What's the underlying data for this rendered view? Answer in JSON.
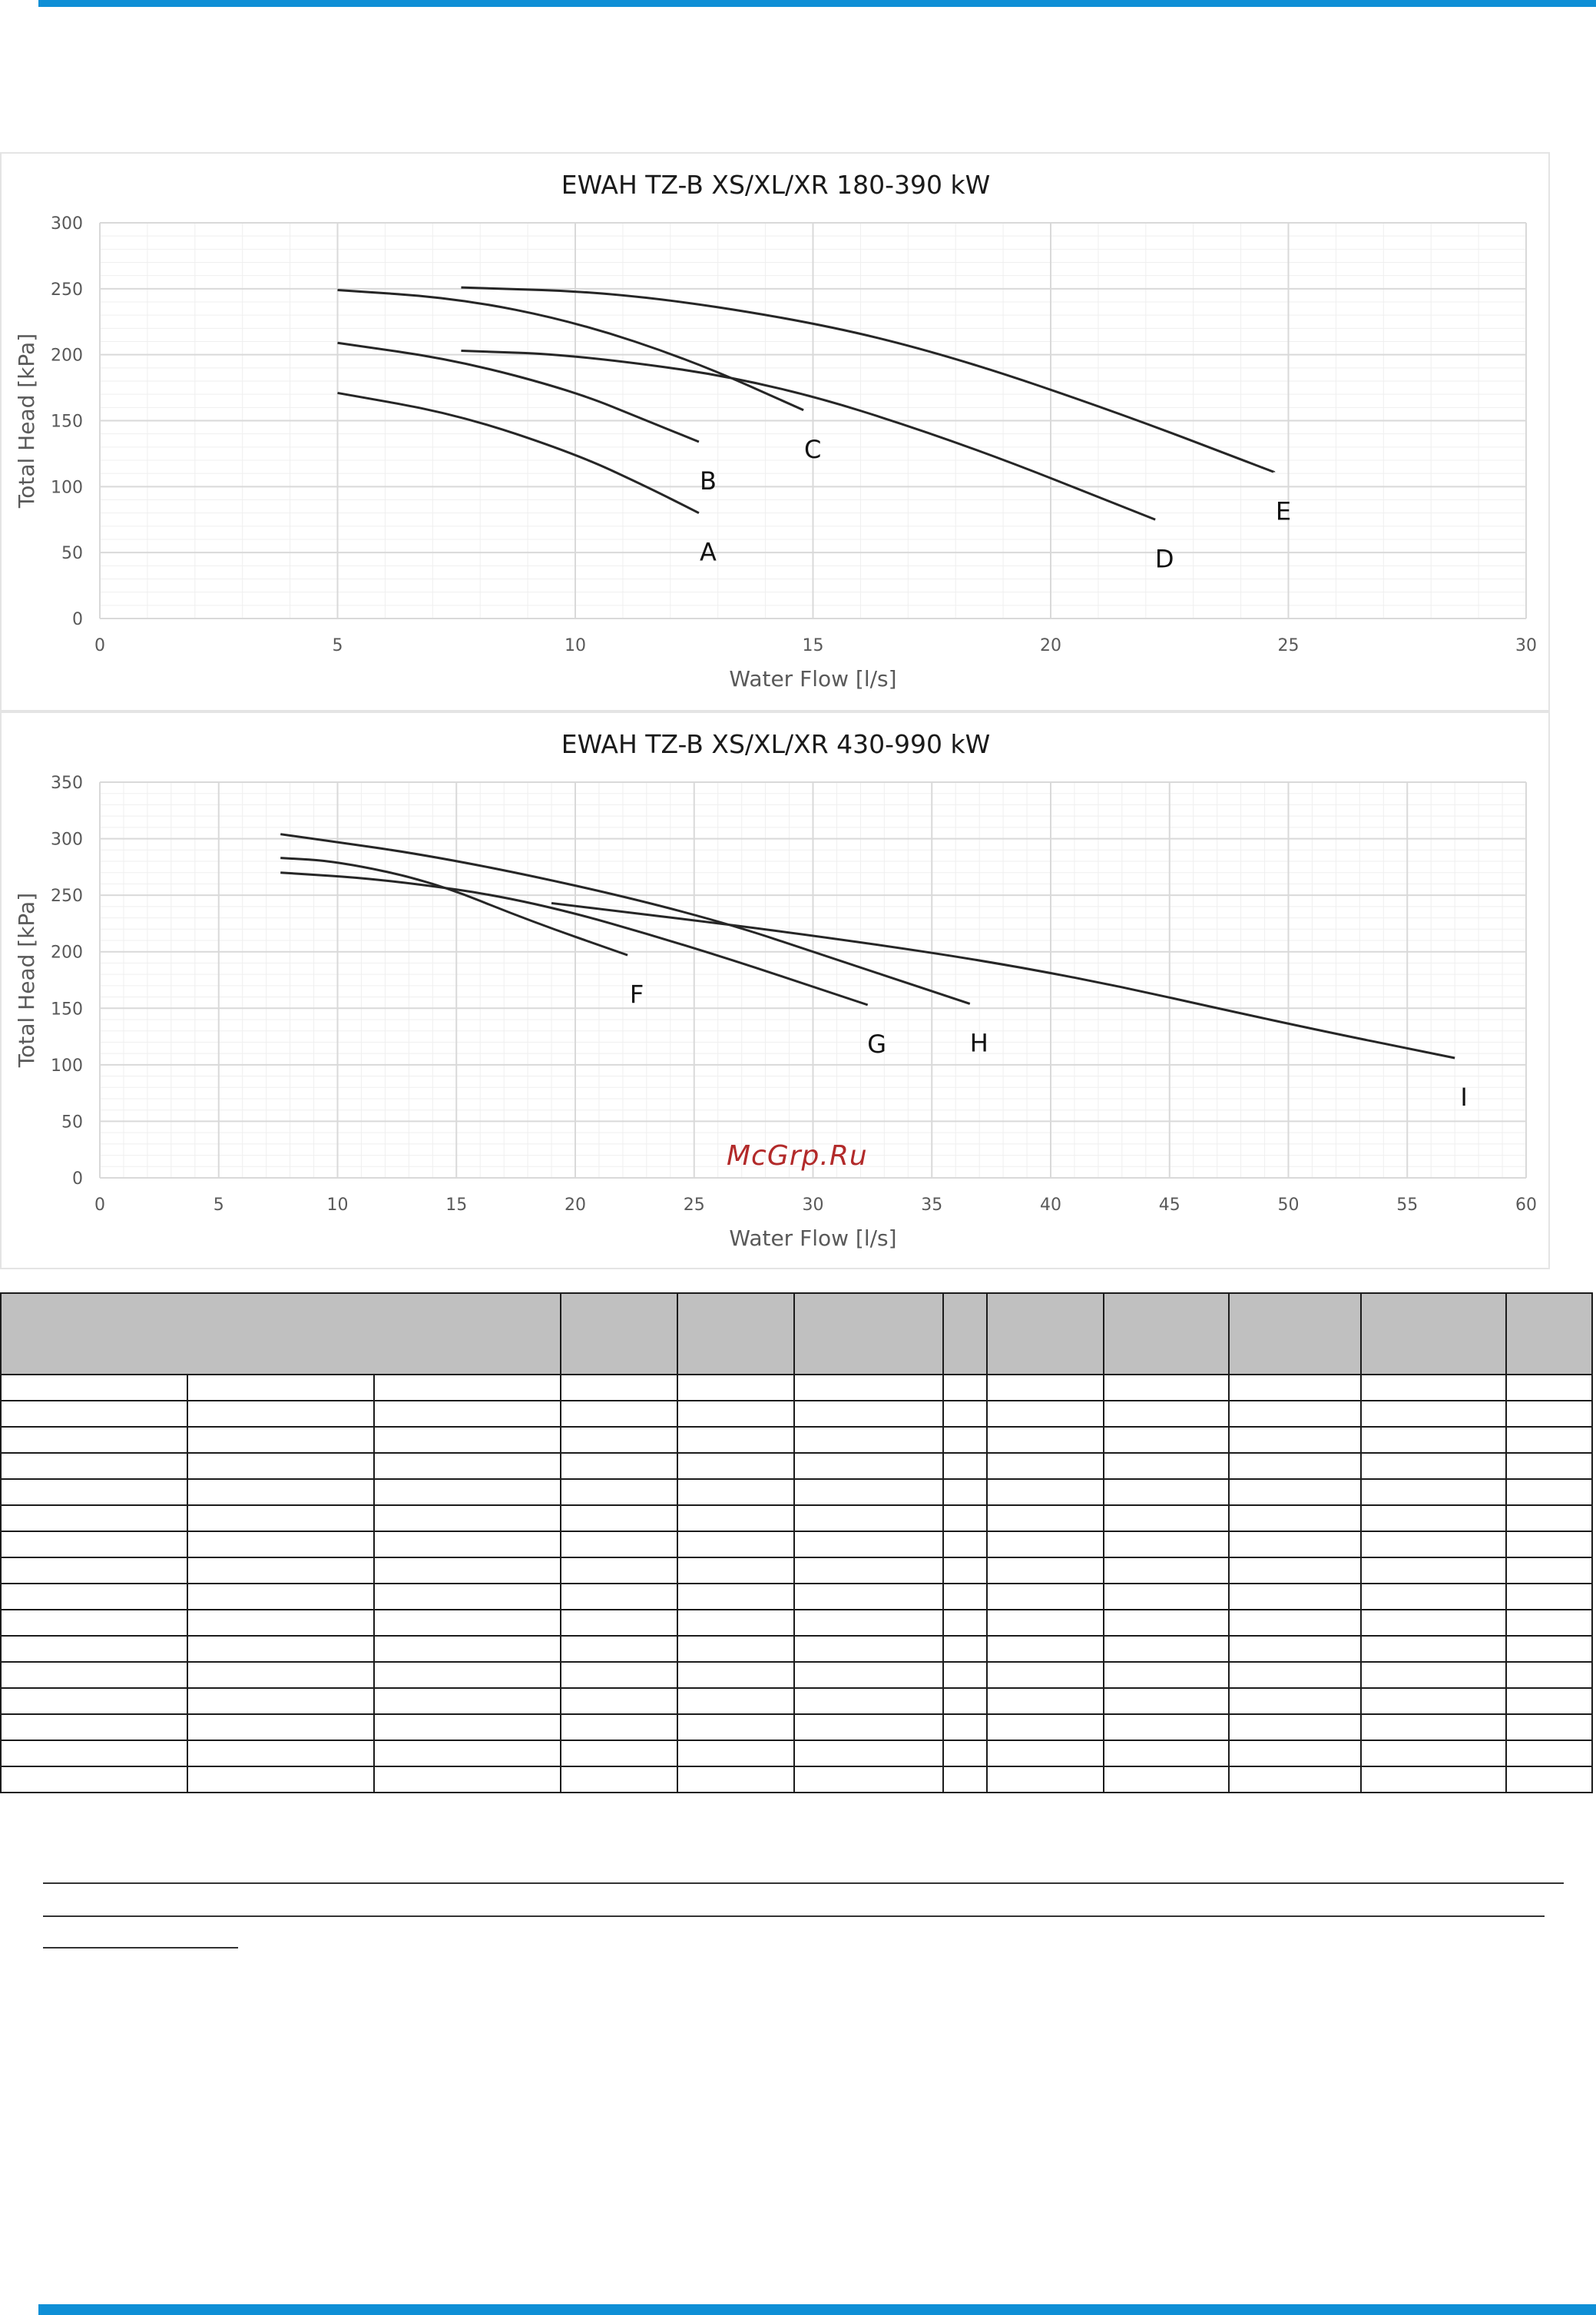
{
  "page": {
    "accent_color": "#0f8fd6",
    "watermark": "McGrp.Ru"
  },
  "chart_data": [
    {
      "type": "line",
      "title": "EWAH TZ-B XS/XL/XR 180-390 kW",
      "xlabel": "Water Flow [l/s]",
      "ylabel": "Total Head [kPa]",
      "xlim": [
        0,
        30
      ],
      "ylim": [
        0,
        300
      ],
      "xticks": [
        0,
        5,
        10,
        15,
        20,
        25,
        30
      ],
      "yticks": [
        0,
        50,
        100,
        150,
        200,
        250,
        300
      ],
      "grid": true,
      "series": [
        {
          "name": "A",
          "x": [
            5,
            7.5,
            10,
            11.5,
            12.6
          ],
          "y": [
            171,
            155,
            125,
            100,
            80
          ]
        },
        {
          "name": "B",
          "x": [
            5,
            7.5,
            10,
            11.5,
            12.6
          ],
          "y": [
            209,
            196,
            172,
            150,
            134
          ]
        },
        {
          "name": "C",
          "x": [
            5,
            7.5,
            10,
            12.5,
            14.8
          ],
          "y": [
            249,
            243,
            225,
            195,
            158
          ]
        },
        {
          "name": "D",
          "x": [
            7.6,
            10,
            14,
            18,
            22.2
          ],
          "y": [
            203,
            200,
            180,
            135,
            75
          ]
        },
        {
          "name": "E",
          "x": [
            7.6,
            11,
            15,
            18,
            21.5,
            24.7
          ],
          "y": [
            251,
            247,
            225,
            198,
            155,
            111
          ]
        }
      ]
    },
    {
      "type": "line",
      "title": "EWAH TZ-B XS/XL/XR 430-990 kW",
      "xlabel": "Water Flow [l/s]",
      "ylabel": "Total Head [kPa]",
      "xlim": [
        0,
        60
      ],
      "ylim": [
        0,
        350
      ],
      "xticks": [
        0,
        5,
        10,
        15,
        20,
        25,
        30,
        35,
        40,
        45,
        50,
        55,
        60
      ],
      "yticks": [
        0,
        50,
        100,
        150,
        200,
        250,
        300,
        350
      ],
      "grid": true,
      "series": [
        {
          "name": "F",
          "x": [
            7.6,
            10,
            14,
            18,
            22.2
          ],
          "y": [
            283,
            280,
            262,
            228,
            197
          ]
        },
        {
          "name": "G",
          "x": [
            7.6,
            12,
            18,
            25,
            32.3
          ],
          "y": [
            270,
            264,
            246,
            204,
            153
          ]
        },
        {
          "name": "H",
          "x": [
            7.6,
            15,
            25,
            32,
            36.6
          ],
          "y": [
            304,
            282,
            235,
            186,
            154
          ]
        },
        {
          "name": "I",
          "x": [
            19,
            30,
            40,
            50,
            57
          ],
          "y": [
            243,
            215,
            183,
            136,
            106
          ]
        }
      ]
    }
  ]
}
